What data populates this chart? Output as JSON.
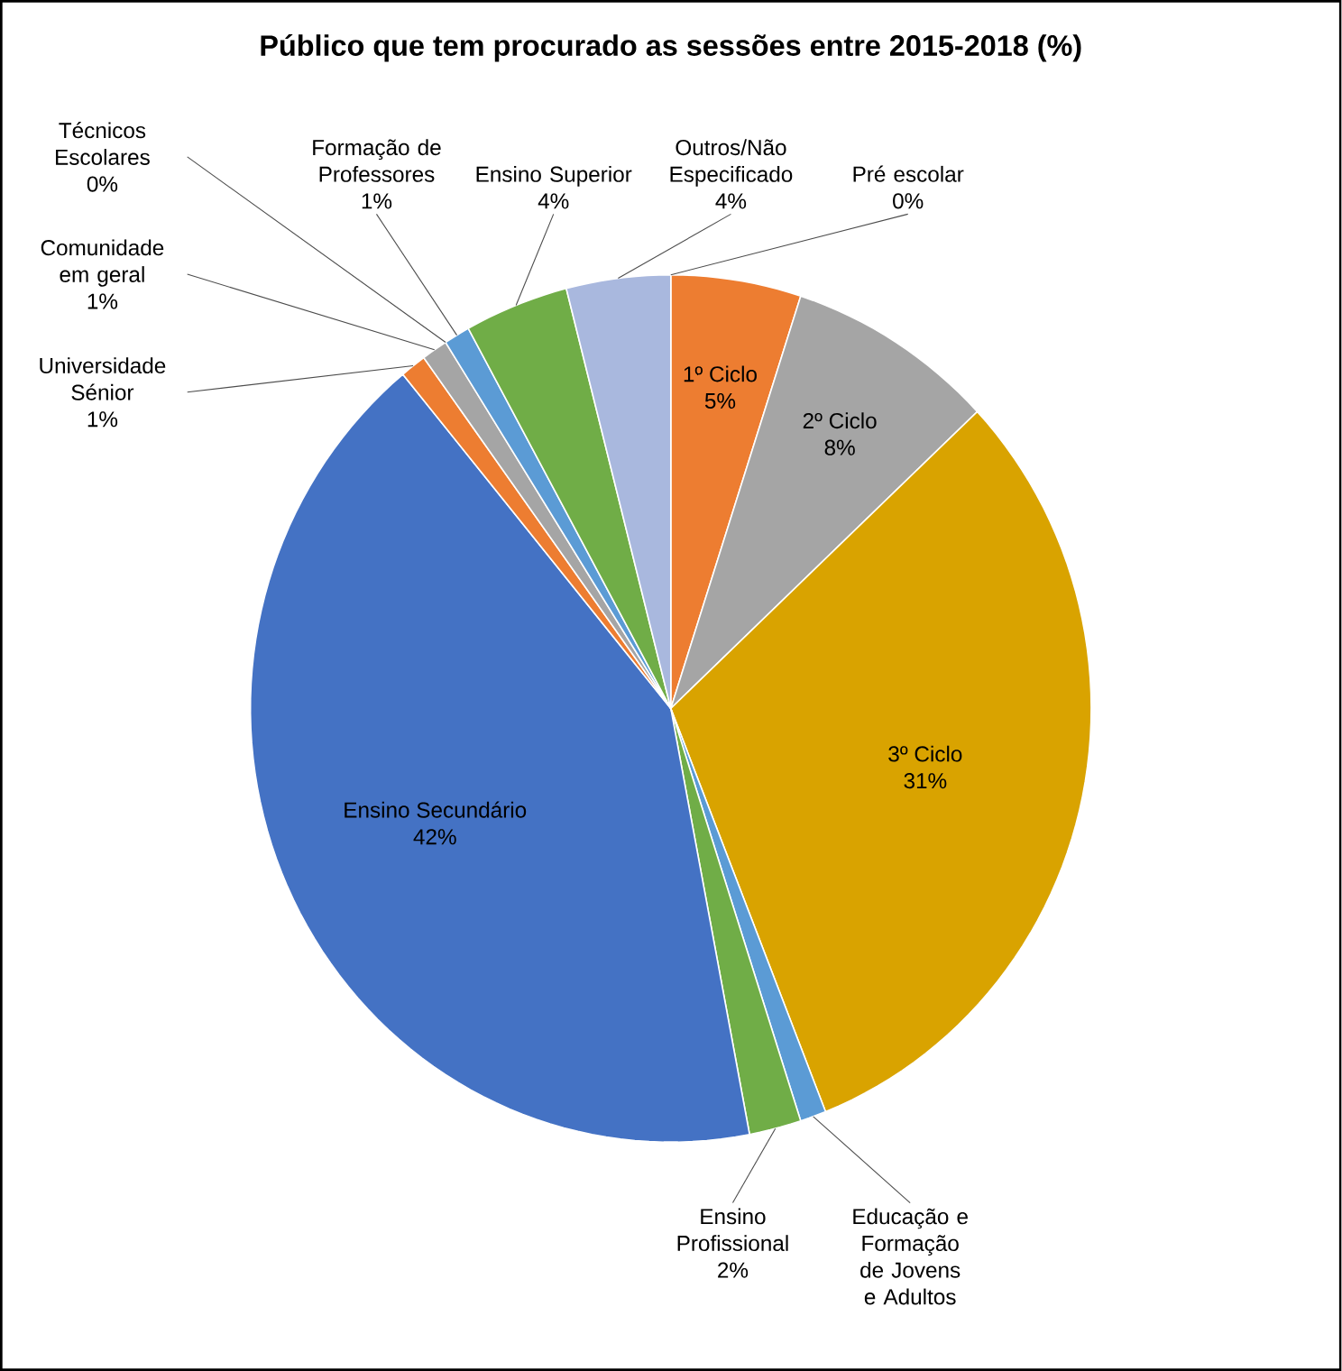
{
  "chart_data": {
    "type": "pie",
    "title": "Público que tem procurado as sessões entre 2015-2018 (%)",
    "categories": [
      "Pré escolar",
      "1º Ciclo",
      "2º Ciclo",
      "3º Ciclo",
      "Educação e Formação de Jovens e Adultos",
      "Ensino Profissional",
      "Ensino Secundário",
      "Universidade Sénior",
      "Comunidade em geral",
      "Técnicos Escolares",
      "Formação de Professores",
      "Ensino Superior",
      "Outros/Não Especificado"
    ],
    "values": [
      0,
      5,
      8,
      31,
      1,
      2,
      42,
      1,
      1,
      0,
      1,
      4,
      4
    ],
    "value_labels": [
      "0%",
      "5%",
      "8%",
      "31%",
      null,
      "2%",
      "42%",
      "1%",
      "1%",
      "0%",
      "1%",
      "4%",
      "4%"
    ],
    "colors": [
      "#4472c4",
      "#ed7d31",
      "#a5a5a5",
      "#d9a300",
      "#5b9bd5",
      "#70ad47",
      "#4472c4",
      "#ed7d31",
      "#a5a5a5",
      "#ffc000",
      "#5b9bd5",
      "#70ad47",
      "#a9b8de"
    ]
  }
}
